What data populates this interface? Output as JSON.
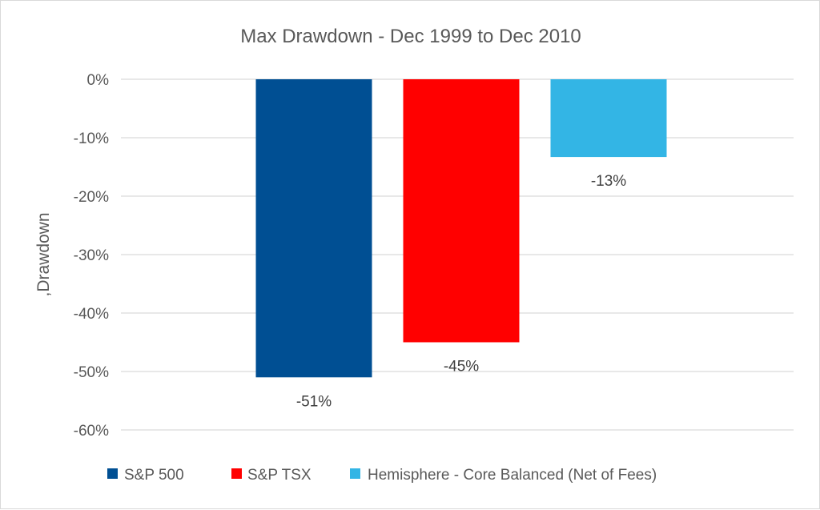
{
  "chart_data": {
    "type": "bar",
    "title": "Max Drawdown - Dec 1999 to Dec 2010",
    "xlabel": "",
    "ylabel": ",Drawdown",
    "ylim": [
      -60,
      0
    ],
    "yticks": [
      0,
      -10,
      -20,
      -30,
      -40,
      -50,
      -60
    ],
    "ytick_labels": [
      "0%",
      "-10%",
      "-20%",
      "-30%",
      "-40%",
      "-50%",
      "-60%"
    ],
    "grid": true,
    "legend_position": "bottom",
    "series": [
      {
        "name": "S&P 500",
        "value": -51,
        "label": "-51%",
        "color": "#004f93"
      },
      {
        "name": "S&P TSX",
        "value": -45,
        "label": "-45%",
        "color": "#ff0000"
      },
      {
        "name": "Hemisphere - Core Balanced (Net of Fees)",
        "value": -13.3,
        "label": "-13%",
        "color": "#33b5e5"
      }
    ]
  }
}
